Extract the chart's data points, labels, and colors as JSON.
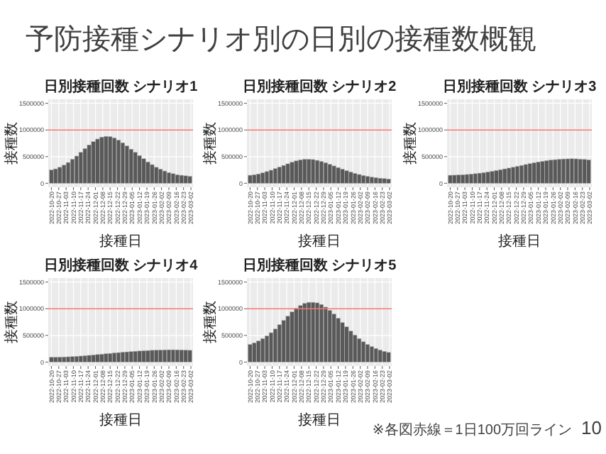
{
  "chart_data": [
    {
      "type": "other",
      "title": "予防接種シナリオ別の日別の接種数概観",
      "annotations": [
        "※各図赤線＝1日100万回ライン",
        "10"
      ]
    },
    {
      "type": "bar",
      "title": "日別接種回数 シナリオ1",
      "xlabel": "接種日",
      "ylabel": "接種数",
      "grid": true,
      "color": "#595959",
      "x": [
        "2022-10-20",
        "2022-10-24",
        "2022-10-28",
        "2022-11-01",
        "2022-11-05",
        "2022-11-09",
        "2022-11-13",
        "2022-11-17",
        "2022-11-21",
        "2022-11-25",
        "2022-11-29",
        "2022-12-03",
        "2022-12-07",
        "2022-12-11",
        "2022-12-15",
        "2022-12-19",
        "2022-12-23",
        "2022-12-27",
        "2022-12-31",
        "2023-01-04",
        "2023-01-08",
        "2023-01-12",
        "2023-01-16",
        "2023-01-20",
        "2023-01-24",
        "2023-01-28",
        "2023-02-01",
        "2023-02-05",
        "2023-02-09",
        "2023-02-13",
        "2023-02-17",
        "2023-02-21",
        "2023-02-25",
        "2023-03-01"
      ],
      "values": [
        250000,
        270000,
        300000,
        340000,
        390000,
        450000,
        510000,
        580000,
        650000,
        720000,
        780000,
        830000,
        865000,
        880000,
        875000,
        850000,
        810000,
        760000,
        700000,
        640000,
        580000,
        520000,
        460000,
        400000,
        350000,
        300000,
        265000,
        230000,
        200000,
        180000,
        160000,
        150000,
        140000,
        130000
      ],
      "xlim": [
        "2022-10-17",
        "2023-03-04"
      ],
      "xticks": [
        "2022-10-20",
        "2022-10-27",
        "2022-11-03",
        "2022-11-10",
        "2022-11-17",
        "2022-11-24",
        "2022-12-01",
        "2022-12-08",
        "2022-12-15",
        "2022-12-22",
        "2022-12-29",
        "2023-01-05",
        "2023-01-12",
        "2023-01-19",
        "2023-01-26",
        "2023-02-02",
        "2023-02-09",
        "2023-02-16",
        "2023-02-23",
        "2023-03-02"
      ],
      "ylim": [
        -75000,
        1575000
      ],
      "yticks": [
        0,
        500000,
        1000000,
        1500000
      ],
      "ref_lines": [
        {
          "axis": "y",
          "value": 1000000,
          "color": "#f8766d"
        }
      ]
    },
    {
      "type": "bar",
      "title": "日別接種回数 シナリオ2",
      "xlabel": "接種日",
      "ylabel": "接種数",
      "grid": true,
      "color": "#595959",
      "x": [
        "2022-10-20",
        "2022-10-24",
        "2022-10-28",
        "2022-11-01",
        "2022-11-05",
        "2022-11-09",
        "2022-11-13",
        "2022-11-17",
        "2022-11-21",
        "2022-11-25",
        "2022-11-29",
        "2022-12-03",
        "2022-12-07",
        "2022-12-11",
        "2022-12-15",
        "2022-12-19",
        "2022-12-23",
        "2022-12-27",
        "2022-12-31",
        "2023-01-04",
        "2023-01-08",
        "2023-01-12",
        "2023-01-16",
        "2023-01-20",
        "2023-01-24",
        "2023-01-28",
        "2023-02-01",
        "2023-02-05",
        "2023-02-09",
        "2023-02-13",
        "2023-02-17",
        "2023-02-21",
        "2023-02-25",
        "2023-03-01"
      ],
      "values": [
        150000,
        160000,
        175000,
        195000,
        220000,
        245000,
        275000,
        305000,
        335000,
        365000,
        395000,
        420000,
        440000,
        450000,
        450000,
        445000,
        430000,
        410000,
        385000,
        355000,
        325000,
        295000,
        265000,
        235000,
        210000,
        185000,
        165000,
        145000,
        130000,
        115000,
        105000,
        95000,
        88000,
        80000
      ],
      "xlim": [
        "2022-10-17",
        "2023-03-04"
      ],
      "xticks": [
        "2022-10-20",
        "2022-10-27",
        "2022-11-03",
        "2022-11-10",
        "2022-11-17",
        "2022-11-24",
        "2022-12-01",
        "2022-12-08",
        "2022-12-15",
        "2022-12-22",
        "2022-12-29",
        "2023-01-05",
        "2023-01-12",
        "2023-01-19",
        "2023-01-26",
        "2023-02-02",
        "2023-02-09",
        "2023-02-16",
        "2023-02-23",
        "2023-03-02"
      ],
      "ylim": [
        -75000,
        1575000
      ],
      "yticks": [
        0,
        500000,
        1000000,
        1500000
      ],
      "ref_lines": [
        {
          "axis": "y",
          "value": 1000000,
          "color": "#f8766d"
        }
      ]
    },
    {
      "type": "bar",
      "title": "日別接種回数 シナリオ3",
      "xlabel": "接種日",
      "ylabel": "接種数",
      "grid": true,
      "color": "#595959",
      "x": [
        "2022-10-20",
        "2022-10-24",
        "2022-10-28",
        "2022-11-01",
        "2022-11-05",
        "2022-11-09",
        "2022-11-13",
        "2022-11-17",
        "2022-11-21",
        "2022-11-25",
        "2022-11-29",
        "2022-12-03",
        "2022-12-07",
        "2022-12-11",
        "2022-12-15",
        "2022-12-19",
        "2022-12-23",
        "2022-12-27",
        "2022-12-31",
        "2023-01-04",
        "2023-01-08",
        "2023-01-12",
        "2023-01-16",
        "2023-01-20",
        "2023-01-24",
        "2023-01-28",
        "2023-02-01",
        "2023-02-05",
        "2023-02-09",
        "2023-02-13",
        "2023-02-17",
        "2023-02-21",
        "2023-02-25",
        "2023-03-01"
      ],
      "values": [
        150000,
        152000,
        155000,
        160000,
        165000,
        172000,
        180000,
        190000,
        200000,
        212000,
        225000,
        240000,
        255000,
        270000,
        285000,
        300000,
        318000,
        335000,
        352000,
        368000,
        385000,
        400000,
        412000,
        425000,
        435000,
        443000,
        450000,
        455000,
        458000,
        460000,
        458000,
        452000,
        447000,
        440000
      ],
      "xlim": [
        "2022-10-17",
        "2023-03-04"
      ],
      "xticks": [
        "2022-10-20",
        "2022-10-27",
        "2022-11-03",
        "2022-11-10",
        "2022-11-17",
        "2022-11-24",
        "2022-12-01",
        "2022-12-08",
        "2022-12-15",
        "2022-12-22",
        "2022-12-29",
        "2023-01-05",
        "2023-01-12",
        "2023-01-19",
        "2023-01-26",
        "2023-02-02",
        "2023-02-09",
        "2023-02-16",
        "2023-02-23",
        "2023-03-02"
      ],
      "ylim": [
        -75000,
        1575000
      ],
      "yticks": [
        0,
        500000,
        1000000,
        1500000
      ],
      "ref_lines": [
        {
          "axis": "y",
          "value": 1000000,
          "color": "#f8766d"
        }
      ]
    },
    {
      "type": "bar",
      "title": "日別接種回数 シナリオ4",
      "xlabel": "接種日",
      "ylabel": "接種数",
      "grid": true,
      "color": "#595959",
      "x": [
        "2022-10-20",
        "2022-10-24",
        "2022-10-28",
        "2022-11-01",
        "2022-11-05",
        "2022-11-09",
        "2022-11-13",
        "2022-11-17",
        "2022-11-21",
        "2022-11-25",
        "2022-11-29",
        "2022-12-03",
        "2022-12-07",
        "2022-12-11",
        "2022-12-15",
        "2022-12-19",
        "2022-12-23",
        "2022-12-27",
        "2022-12-31",
        "2023-01-04",
        "2023-01-08",
        "2023-01-12",
        "2023-01-16",
        "2023-01-20",
        "2023-01-24",
        "2023-01-28",
        "2023-02-01",
        "2023-02-05",
        "2023-02-09",
        "2023-02-13",
        "2023-02-17",
        "2023-02-21",
        "2023-02-25",
        "2023-03-01"
      ],
      "values": [
        90000,
        90000,
        92000,
        95000,
        98000,
        102000,
        107000,
        112000,
        118000,
        125000,
        132000,
        140000,
        147000,
        155000,
        162000,
        170000,
        177000,
        184000,
        190000,
        196000,
        202000,
        207000,
        212000,
        216000,
        220000,
        223000,
        226000,
        228000,
        230000,
        230000,
        229000,
        227000,
        224000,
        220000
      ],
      "xlim": [
        "2022-10-17",
        "2023-03-04"
      ],
      "xticks": [
        "2022-10-20",
        "2022-10-27",
        "2022-11-03",
        "2022-11-10",
        "2022-11-17",
        "2022-11-24",
        "2022-12-01",
        "2022-12-08",
        "2022-12-15",
        "2022-12-22",
        "2022-12-29",
        "2023-01-05",
        "2023-01-12",
        "2023-01-19",
        "2023-01-26",
        "2023-02-02",
        "2023-02-09",
        "2023-02-16",
        "2023-02-23",
        "2023-03-02"
      ],
      "ylim": [
        -75000,
        1575000
      ],
      "yticks": [
        0,
        500000,
        1000000,
        1500000
      ],
      "ref_lines": [
        {
          "axis": "y",
          "value": 1000000,
          "color": "#f8766d"
        }
      ]
    },
    {
      "type": "bar",
      "title": "日別接種回数 シナリオ5",
      "xlabel": "接種日",
      "ylabel": "接種数",
      "grid": true,
      "color": "#595959",
      "x": [
        "2022-10-20",
        "2022-10-24",
        "2022-10-28",
        "2022-11-01",
        "2022-11-05",
        "2022-11-09",
        "2022-11-13",
        "2022-11-17",
        "2022-11-21",
        "2022-11-25",
        "2022-11-29",
        "2022-12-03",
        "2022-12-07",
        "2022-12-11",
        "2022-12-15",
        "2022-12-19",
        "2022-12-23",
        "2022-12-27",
        "2022-12-31",
        "2023-01-04",
        "2023-01-08",
        "2023-01-12",
        "2023-01-16",
        "2023-01-20",
        "2023-01-24",
        "2023-01-28",
        "2023-02-01",
        "2023-02-05",
        "2023-02-09",
        "2023-02-13",
        "2023-02-17",
        "2023-02-21",
        "2023-02-25",
        "2023-03-01"
      ],
      "values": [
        330000,
        360000,
        395000,
        440000,
        490000,
        550000,
        620000,
        700000,
        780000,
        860000,
        940000,
        1010000,
        1060000,
        1100000,
        1120000,
        1120000,
        1110000,
        1080000,
        1030000,
        970000,
        900000,
        820000,
        740000,
        660000,
        580000,
        505000,
        440000,
        380000,
        330000,
        290000,
        255000,
        225000,
        200000,
        180000
      ],
      "xlim": [
        "2022-10-17",
        "2023-03-04"
      ],
      "xticks": [
        "2022-10-20",
        "2022-10-27",
        "2022-11-03",
        "2022-11-10",
        "2022-11-17",
        "2022-11-24",
        "2022-12-01",
        "2022-12-08",
        "2022-12-15",
        "2022-12-22",
        "2022-12-29",
        "2023-01-05",
        "2023-01-12",
        "2023-01-19",
        "2023-01-26",
        "2023-02-02",
        "2023-02-09",
        "2023-02-16",
        "2023-02-23",
        "2023-03-02"
      ],
      "ylim": [
        -75000,
        1575000
      ],
      "yticks": [
        0,
        500000,
        1000000,
        1500000
      ],
      "ref_lines": [
        {
          "axis": "y",
          "value": 1000000,
          "color": "#f8766d"
        }
      ]
    }
  ]
}
